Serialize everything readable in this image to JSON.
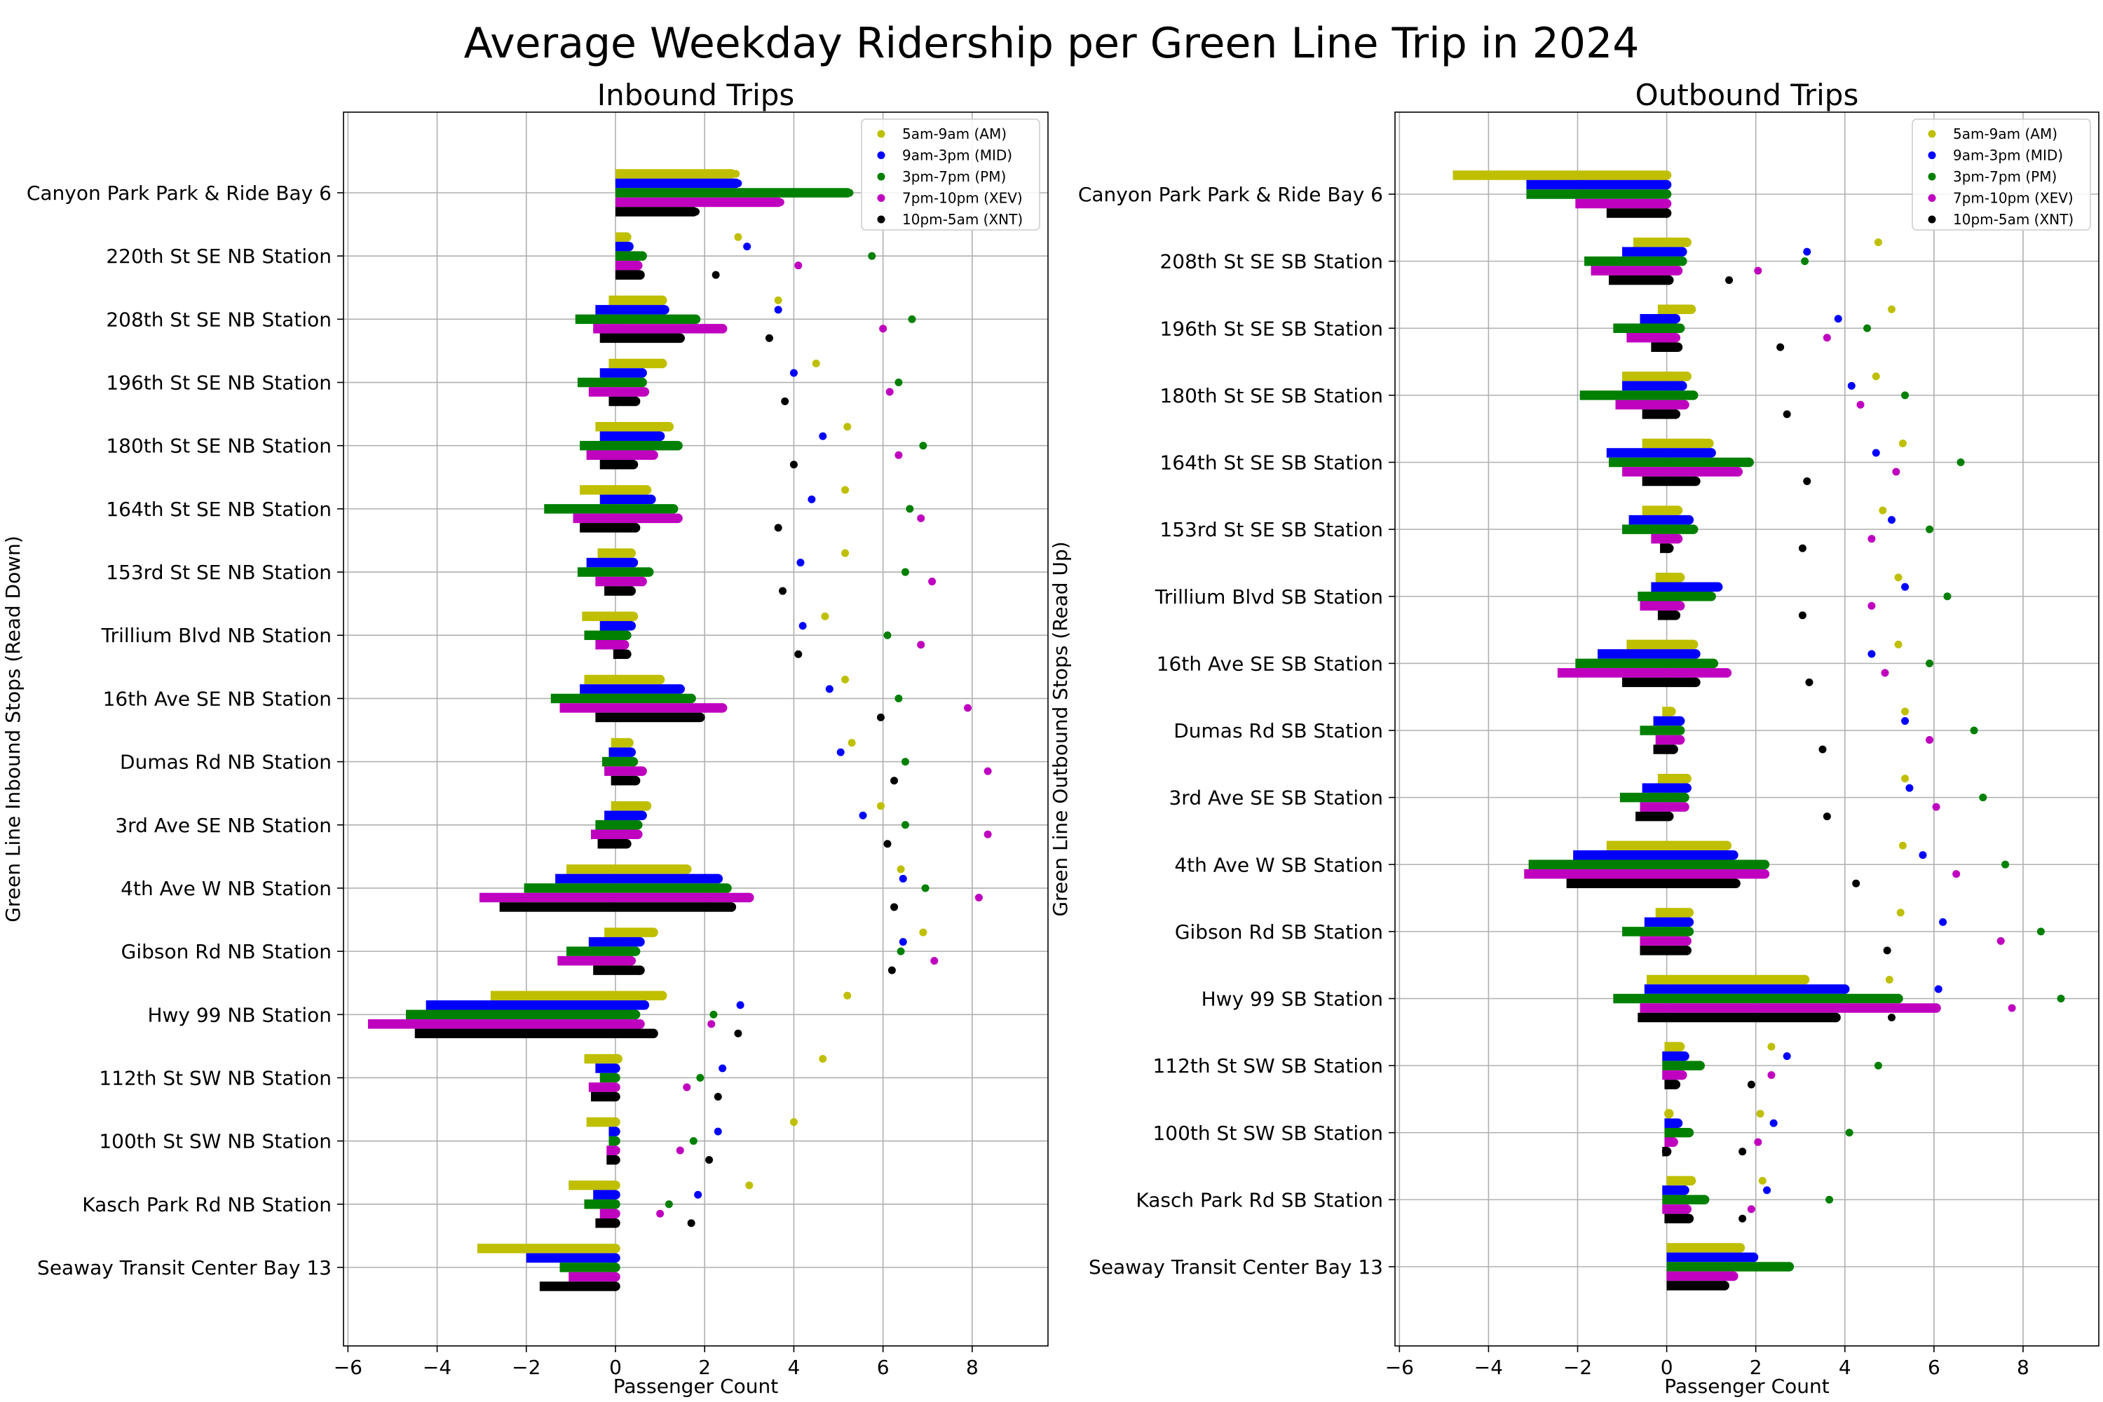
{
  "title": "Average Weekday Ridership per Green Line Trip in 2024",
  "colors": {
    "AM": "#bfbf00",
    "MID": "#0000ff",
    "PM": "#008000",
    "XEV": "#bf00bf",
    "XNT": "#000000"
  },
  "chart_data": [
    {
      "type": "bar",
      "orientation": "horizontal",
      "title": "Inbound Trips",
      "xlabel": "Passenger Count",
      "ylabel": "Green Line Inbound Stops (Read Down)",
      "xlim": [
        -6.1,
        9.7
      ],
      "xticks": [
        -6,
        -4,
        -2,
        0,
        2,
        4,
        6,
        8
      ],
      "grid": true,
      "legend_position": "top-right",
      "categories": [
        "Canyon Park Park & Ride Bay 6",
        "220th St SE NB Station",
        "208th St SE NB Station",
        "196th St SE NB Station",
        "180th St SE NB Station",
        "164th St SE NB Station",
        "153rd St SE NB Station",
        "Trillium Blvd NB Station",
        "16th Ave SE NB Station",
        "Dumas Rd NB Station",
        "3rd Ave SE NB Station",
        "4th Ave W NB Station",
        "Gibson Rd NB Station",
        "Hwy 99 NB Station",
        "112th St SW NB Station",
        "100th St SW NB Station",
        "Kasch Park Rd NB Station",
        "Seaway Transit Center Bay 13"
      ],
      "series": [
        {
          "name": "5am-9am (AM)",
          "key": "AM",
          "bar_start": [
            0,
            0,
            -0.15,
            -0.15,
            -0.45,
            -0.8,
            -0.4,
            -0.75,
            -0.7,
            -0.1,
            -0.1,
            -1.1,
            -0.25,
            -2.8,
            -0.7,
            -0.65,
            -1.05,
            -3.1
          ],
          "bar_end": [
            2.6,
            0.25,
            1.05,
            1.05,
            1.2,
            0.7,
            0.35,
            0.4,
            1.0,
            0.3,
            0.7,
            1.6,
            0.85,
            1.05,
            0.05,
            0,
            0,
            0
          ],
          "load": [
            2.7,
            2.75,
            3.65,
            4.5,
            5.2,
            5.15,
            5.15,
            4.7,
            5.15,
            5.3,
            5.95,
            6.4,
            6.9,
            5.2,
            4.65,
            4.0,
            3.0,
            0
          ]
        },
        {
          "name": "9am-3pm (MID)",
          "key": "MID",
          "bar_start": [
            0,
            0,
            -0.45,
            -0.35,
            -0.35,
            -0.35,
            -0.65,
            -0.35,
            -0.8,
            -0.15,
            -0.25,
            -1.35,
            -0.6,
            -4.25,
            -0.45,
            -0.15,
            -0.5,
            -2.0
          ],
          "bar_end": [
            2.7,
            0.3,
            1.1,
            0.6,
            1.0,
            0.8,
            0.4,
            0.35,
            1.45,
            0.35,
            0.6,
            2.3,
            0.55,
            0.65,
            0,
            0,
            0,
            0
          ],
          "load": [
            2.75,
            2.95,
            3.65,
            4.0,
            4.65,
            4.4,
            4.15,
            4.2,
            4.8,
            5.05,
            5.55,
            6.45,
            6.45,
            2.8,
            2.4,
            2.3,
            1.85,
            0
          ]
        },
        {
          "name": "3pm-7pm (PM)",
          "key": "PM",
          "bar_start": [
            0,
            0,
            -0.9,
            -0.85,
            -0.8,
            -1.6,
            -0.85,
            -0.7,
            -1.45,
            -0.3,
            -0.45,
            -2.05,
            -1.1,
            -4.7,
            -0.35,
            -0.15,
            -0.7,
            -1.25
          ],
          "bar_end": [
            5.2,
            0.6,
            1.8,
            0.6,
            1.4,
            1.3,
            0.75,
            0.25,
            1.7,
            0.4,
            0.5,
            2.5,
            0.45,
            0.45,
            0,
            0,
            0,
            0
          ],
          "load": [
            5.25,
            5.75,
            6.65,
            6.35,
            6.9,
            6.6,
            6.5,
            6.1,
            6.35,
            6.5,
            6.5,
            6.95,
            6.4,
            2.2,
            1.9,
            1.75,
            1.2,
            0
          ]
        },
        {
          "name": "7pm-10pm (XEV)",
          "key": "XEV",
          "bar_start": [
            0,
            0,
            -0.5,
            -0.6,
            -0.65,
            -0.95,
            -0.45,
            -0.45,
            -1.25,
            -0.25,
            -0.55,
            -3.05,
            -1.3,
            -5.55,
            -0.6,
            -0.2,
            -0.35,
            -1.05
          ],
          "bar_end": [
            3.65,
            0.5,
            2.4,
            0.65,
            0.85,
            1.4,
            0.6,
            0.2,
            2.4,
            0.6,
            0.5,
            3.0,
            0.35,
            0.55,
            0,
            0,
            0,
            0
          ],
          "load": [
            3.7,
            4.1,
            6.0,
            6.15,
            6.35,
            6.85,
            7.1,
            6.85,
            7.9,
            8.35,
            8.35,
            8.15,
            7.15,
            2.15,
            1.6,
            1.45,
            1.0,
            0
          ]
        },
        {
          "name": "10pm-5am (XNT)",
          "key": "XNT",
          "bar_start": [
            0,
            0,
            -0.35,
            -0.15,
            -0.35,
            -0.8,
            -0.25,
            -0.05,
            -0.45,
            -0.1,
            -0.4,
            -2.6,
            -0.5,
            -4.5,
            -0.55,
            -0.2,
            -0.45,
            -1.7
          ],
          "bar_end": [
            1.75,
            0.55,
            1.45,
            0.45,
            0.4,
            0.45,
            0.35,
            0.25,
            1.9,
            0.45,
            0.25,
            2.6,
            0.55,
            0.85,
            0,
            0,
            0,
            0
          ],
          "load": [
            1.8,
            2.25,
            3.45,
            3.8,
            4.0,
            3.65,
            3.75,
            4.1,
            5.95,
            6.25,
            6.1,
            6.25,
            6.2,
            2.75,
            2.3,
            2.1,
            1.7,
            0
          ]
        }
      ]
    },
    {
      "type": "bar",
      "orientation": "horizontal",
      "title": "Outbound Trips",
      "xlabel": "Passenger Count",
      "ylabel": "Green Line Outbound Stops (Read Up)",
      "xlim": [
        -6.1,
        9.7
      ],
      "xticks": [
        -6,
        -4,
        -2,
        0,
        2,
        4,
        6,
        8
      ],
      "grid": true,
      "legend_position": "top-right",
      "categories": [
        "Canyon Park Park & Ride Bay 6",
        "208th St SE SB Station",
        "196th St SE SB Station",
        "180th St SE SB Station",
        "164th St SE SB Station",
        "153rd St SE SB Station",
        "Trillium Blvd SB Station",
        "16th Ave SE SB Station",
        "Dumas Rd SB Station",
        "3rd Ave SE SB Station",
        "4th Ave W SB Station",
        "Gibson Rd SB Station",
        "Hwy 99 SB Station",
        "112th St SW SB Station",
        "100th St SW SB Station",
        "Kasch Park Rd SB Station",
        "Seaway Transit Center Bay 13"
      ],
      "series": [
        {
          "name": "5am-9am (AM)",
          "key": "AM",
          "bar_start": [
            -4.8,
            -0.75,
            -0.2,
            -1.0,
            -0.55,
            -0.55,
            -0.25,
            -0.9,
            -0.1,
            -0.2,
            -1.35,
            -0.25,
            -0.45,
            -0.05,
            0,
            0,
            0
          ],
          "bar_end": [
            0,
            0.45,
            0.55,
            0.45,
            0.95,
            0.25,
            0.3,
            0.6,
            0.1,
            0.45,
            1.35,
            0.5,
            3.1,
            0.3,
            0.05,
            0.55,
            1.65
          ],
          "load": [
            0,
            4.75,
            5.05,
            4.7,
            5.3,
            4.85,
            5.2,
            5.2,
            5.35,
            5.35,
            5.3,
            5.25,
            5.0,
            2.35,
            2.1,
            2.15,
            1.65
          ]
        },
        {
          "name": "9am-3pm (MID)",
          "key": "MID",
          "bar_start": [
            -3.15,
            -1.0,
            -0.6,
            -1.0,
            -1.35,
            -0.85,
            -0.35,
            -1.55,
            -0.3,
            -0.55,
            -2.1,
            -0.5,
            -0.5,
            -0.1,
            -0.05,
            -0.1,
            0
          ],
          "bar_end": [
            0,
            0.35,
            0.2,
            0.35,
            1.0,
            0.5,
            1.15,
            0.65,
            0.3,
            0.45,
            1.5,
            0.5,
            4.0,
            0.4,
            0.25,
            0.4,
            1.95
          ],
          "load": [
            0,
            3.15,
            3.85,
            4.15,
            4.7,
            5.05,
            5.35,
            4.6,
            5.35,
            5.45,
            5.75,
            6.2,
            6.1,
            2.7,
            2.4,
            2.25,
            1.95
          ]
        },
        {
          "name": "3pm-7pm (PM)",
          "key": "PM",
          "bar_start": [
            -3.15,
            -1.85,
            -1.2,
            -1.95,
            -1.3,
            -1.0,
            -0.65,
            -2.05,
            -0.6,
            -1.05,
            -3.1,
            -1.0,
            -1.2,
            -0.1,
            -0.05,
            -0.1,
            0
          ],
          "bar_end": [
            0,
            0.35,
            0.3,
            0.6,
            1.85,
            0.6,
            1.0,
            1.05,
            0.3,
            0.4,
            2.2,
            0.5,
            5.2,
            0.75,
            0.5,
            0.85,
            2.75
          ],
          "load": [
            0,
            3.1,
            4.5,
            5.35,
            6.6,
            5.9,
            6.3,
            5.9,
            6.9,
            7.1,
            7.6,
            8.4,
            8.85,
            4.75,
            4.1,
            3.65,
            2.75
          ]
        },
        {
          "name": "7pm-10pm (XEV)",
          "key": "XEV",
          "bar_start": [
            -2.05,
            -1.7,
            -0.9,
            -1.15,
            -1.0,
            -0.35,
            -0.6,
            -2.45,
            -0.25,
            -0.6,
            -3.2,
            -0.6,
            -0.6,
            -0.1,
            -0.05,
            -0.1,
            0
          ],
          "bar_end": [
            0,
            0.25,
            0.2,
            0.4,
            1.6,
            0.25,
            0.3,
            1.35,
            0.3,
            0.4,
            2.2,
            0.45,
            6.05,
            0.35,
            0.15,
            0.45,
            1.5
          ],
          "load": [
            0,
            2.05,
            3.6,
            4.35,
            5.15,
            4.6,
            4.6,
            4.9,
            5.9,
            6.05,
            6.5,
            7.5,
            7.75,
            2.35,
            2.05,
            1.9,
            1.5
          ]
        },
        {
          "name": "10pm-5am (XNT)",
          "key": "XNT",
          "bar_start": [
            -1.35,
            -1.3,
            -0.35,
            -0.55,
            -0.55,
            -0.15,
            -0.2,
            -1.0,
            -0.3,
            -0.7,
            -2.25,
            -0.6,
            -0.65,
            -0.05,
            -0.1,
            -0.05,
            0
          ],
          "bar_end": [
            0,
            0.05,
            0.25,
            0.2,
            0.65,
            0.05,
            0.2,
            0.65,
            0.15,
            0.05,
            1.55,
            0.45,
            3.8,
            0.2,
            0,
            0.5,
            1.3
          ],
          "load": [
            0,
            1.4,
            2.55,
            2.7,
            3.15,
            3.05,
            3.05,
            3.2,
            3.5,
            3.6,
            4.25,
            4.95,
            5.05,
            1.9,
            1.7,
            1.7,
            1.3
          ]
        }
      ]
    }
  ]
}
